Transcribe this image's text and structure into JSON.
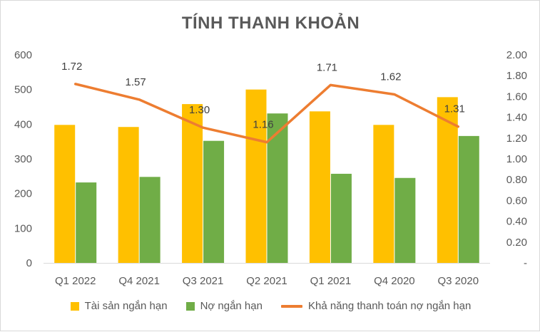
{
  "chart_data": {
    "type": "bar",
    "title": "TÍNH THANH KHOẢN",
    "categories": [
      "Q1 2022",
      "Q4 2021",
      "Q3 2021",
      "Q2 2021",
      "Q1 2021",
      "Q4 2020",
      "Q3 2020"
    ],
    "series": [
      {
        "name": "Tài sản ngắn hạn",
        "type": "bar",
        "axis": "left",
        "color": "#FFC000",
        "values": [
          398,
          392,
          458,
          500,
          437,
          398,
          478
        ]
      },
      {
        "name": "Nợ ngắn hạn",
        "type": "bar",
        "axis": "left",
        "color": "#70AD47",
        "values": [
          232,
          248,
          352,
          431,
          257,
          245,
          366
        ]
      },
      {
        "name": "Khả năng thanh toán nợ ngắn hạn",
        "type": "line",
        "axis": "right",
        "color": "#ED7D31",
        "values": [
          1.72,
          1.57,
          1.3,
          1.16,
          1.71,
          1.62,
          1.31
        ],
        "data_labels": [
          "1.72",
          "1.57",
          "1.30",
          "1.16",
          "1.71",
          "1.62",
          "1.31"
        ]
      }
    ],
    "y_left": {
      "ylim": [
        0,
        600
      ],
      "ticks": [
        "0",
        "100",
        "200",
        "300",
        "400",
        "500",
        "600"
      ]
    },
    "y_right": {
      "ylim": [
        0,
        2.0
      ],
      "ticks": [
        "-",
        "0.20",
        "0.40",
        "0.60",
        "0.80",
        "1.00",
        "1.20",
        "1.40",
        "1.60",
        "1.80",
        "2.00"
      ]
    },
    "grid": false,
    "legend_position": "bottom"
  }
}
